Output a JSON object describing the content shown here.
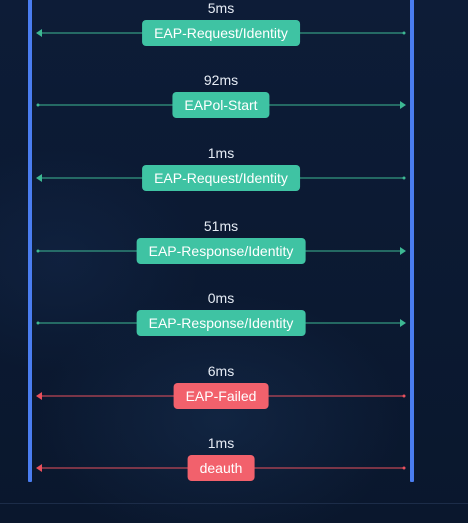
{
  "colors": {
    "lane": "#4a7df0",
    "ok": "#3fc3a3",
    "ok_line": "#3db893",
    "fail": "#f2616c",
    "fail_line": "#e9505c"
  },
  "flows": [
    {
      "latency": "5ms",
      "label": "EAP-Request/Identity",
      "direction": "left",
      "status": "ok"
    },
    {
      "latency": "92ms",
      "label": "EAPol-Start",
      "direction": "right",
      "status": "ok"
    },
    {
      "latency": "1ms",
      "label": "EAP-Request/Identity",
      "direction": "left",
      "status": "ok"
    },
    {
      "latency": "51ms",
      "label": "EAP-Response/Identity",
      "direction": "right",
      "status": "ok"
    },
    {
      "latency": "0ms",
      "label": "EAP-Response/Identity",
      "direction": "right",
      "status": "ok"
    },
    {
      "latency": "6ms",
      "label": "EAP-Failed",
      "direction": "left",
      "status": "fail"
    },
    {
      "latency": "1ms",
      "label": "deauth",
      "direction": "left",
      "status": "fail"
    }
  ]
}
